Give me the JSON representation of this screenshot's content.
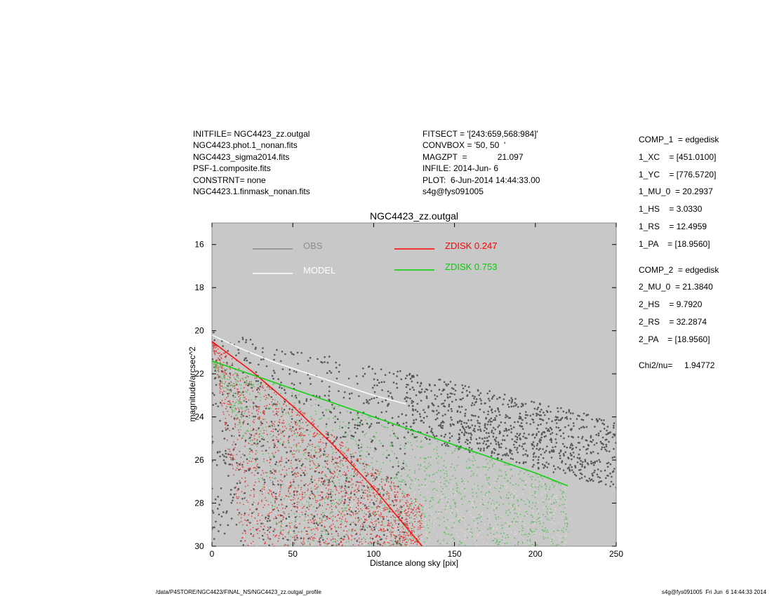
{
  "header_left": [
    "INITFILE= NGC4423_zz.outgal",
    "NGC4423.phot.1_nonan.fits",
    "NGC4423_sigma2014.fits",
    "PSF-1.composite.fits",
    "CONSTRNT= none",
    "NGC4423.1.finmask_nonan.fits"
  ],
  "header_mid": [
    "FITSECT = '[243:659,568:984]'",
    "CONVBOX = '50, 50  '",
    "MAGZPT  =             21.097",
    "INFILE: 2014-Jun- 6",
    "PLOT:  6-Jun-2014 14:44:33.00",
    "s4g@fys091005"
  ],
  "header_right": [
    "COMP_1  = edgedisk",
    "1_XC    = [451.0100]",
    "1_YC    = [776.5720]",
    "1_MU_0  = 20.2937",
    "1_HS    = 3.0330",
    "1_RS    = 12.4959",
    "1_PA    = [18.9560]",
    "",
    "COMP_2  = edgedisk",
    "2_MU_0  = 21.3840",
    "2_HS    = 9.7920",
    "2_RS    = 32.2874",
    "2_PA    = [18.9560]",
    "",
    "Chi2/nu=     1.94772"
  ],
  "footer_left": "/data/P4STORE/NGC4423/FINAL_NS/NGC4423_zz.outgal_profile",
  "footer_right": "s4g@fys091005  Fri Jun  6 14:44:33 2014",
  "chart_data": {
    "type": "scatter",
    "title": "NGC4423_zz.outgal",
    "xlabel": "Distance along sky [pix]",
    "ylabel": "magnitude/arcsec^2",
    "xlim": [
      0,
      250
    ],
    "ylim": [
      30,
      15
    ],
    "y_inverted": true,
    "xticks": [
      0,
      50,
      100,
      150,
      200,
      250
    ],
    "yticks": [
      16,
      18,
      20,
      22,
      24,
      26,
      28,
      30
    ],
    "background": "#c8c8c8",
    "legend": [
      {
        "label": "OBS",
        "color": "#8c8c8c"
      },
      {
        "label": "MODEL",
        "color": "#ffffff"
      },
      {
        "label": "ZDISK  0.247",
        "color": "#ff0000"
      },
      {
        "label": "ZDISK  0.753",
        "color": "#00d000"
      }
    ],
    "series": [
      {
        "name": "OBS",
        "color": "#555555",
        "x": [
          0,
          10,
          20,
          30,
          40,
          50,
          60,
          80,
          100,
          120,
          150,
          180,
          200,
          220,
          250
        ],
        "y": [
          20.0,
          20.5,
          21.0,
          21.4,
          21.7,
          21.9,
          22.1,
          22.6,
          23.0,
          23.5,
          24.0,
          24.2,
          24.3,
          24.4,
          24.5
        ]
      },
      {
        "name": "MODEL",
        "color": "#ffffff",
        "x": [
          0,
          20,
          40,
          60,
          80,
          100,
          120
        ],
        "y": [
          20.2,
          20.9,
          21.5,
          22.0,
          22.5,
          23.0,
          23.4
        ]
      },
      {
        "name": "ZDISK  0.247",
        "color": "#ff0000",
        "x": [
          0,
          25,
          50,
          75,
          100,
          130
        ],
        "y": [
          20.5,
          21.9,
          23.5,
          25.3,
          27.3,
          30.0
        ]
      },
      {
        "name": "ZDISK  0.753",
        "color": "#00d000",
        "x": [
          0,
          50,
          100,
          150,
          200,
          220
        ],
        "y": [
          21.4,
          22.7,
          24.0,
          25.3,
          26.6,
          27.2
        ]
      }
    ]
  }
}
